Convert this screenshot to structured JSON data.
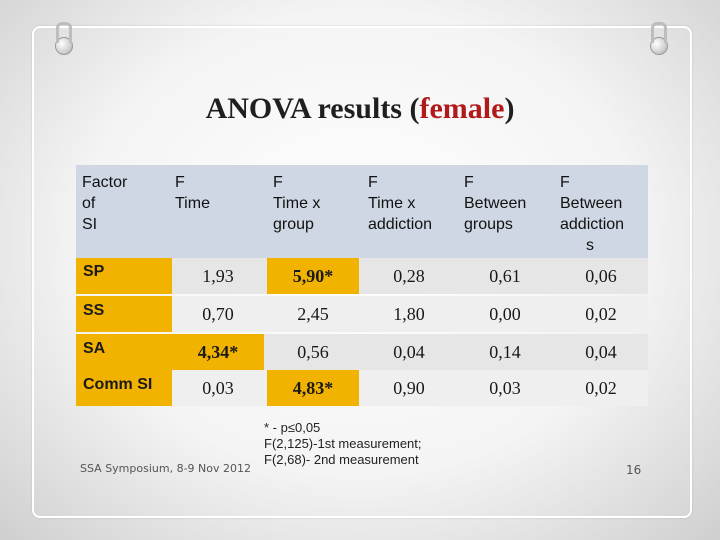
{
  "title": {
    "prefix": "ANOVA results (",
    "highlight": "female",
    "suffix": ")"
  },
  "table": {
    "headers": [
      [
        "Factor",
        "of",
        "SI"
      ],
      [
        "F",
        "Time"
      ],
      [
        "F",
        "Time x",
        "group"
      ],
      [
        "F",
        "Time x",
        "addiction"
      ],
      [
        "F",
        "Between",
        "groups"
      ],
      [
        "F",
        "Between",
        "addiction",
        "s"
      ]
    ],
    "rows": [
      {
        "label": "SP",
        "values": [
          "1,93",
          "5,90*",
          "0,28",
          "0,61",
          "0,06"
        ]
      },
      {
        "label": "SS",
        "values": [
          "0,70",
          "2,45",
          "1,80",
          "0,00",
          "0,02"
        ]
      },
      {
        "label": "SA",
        "values": [
          "4,34*",
          "0,56",
          "0,04",
          "0,14",
          "0,04"
        ]
      },
      {
        "label": "Comm SI",
        "values": [
          "0,03",
          "4,83*",
          "0,90",
          "0,03",
          "0,02"
        ]
      }
    ]
  },
  "footnote": {
    "line1": "* -  p≤0,05",
    "line2": "F(2,125)-1st measurement;",
    "line3": "F(2,68)- 2nd measurement"
  },
  "footer": {
    "left": "SSA Symposium, 8-9 Nov 2012",
    "page": "16"
  },
  "colors": {
    "highlight": "#f2b200",
    "header_band": "#cfd7e4",
    "title_accent": "#b11a1a"
  }
}
